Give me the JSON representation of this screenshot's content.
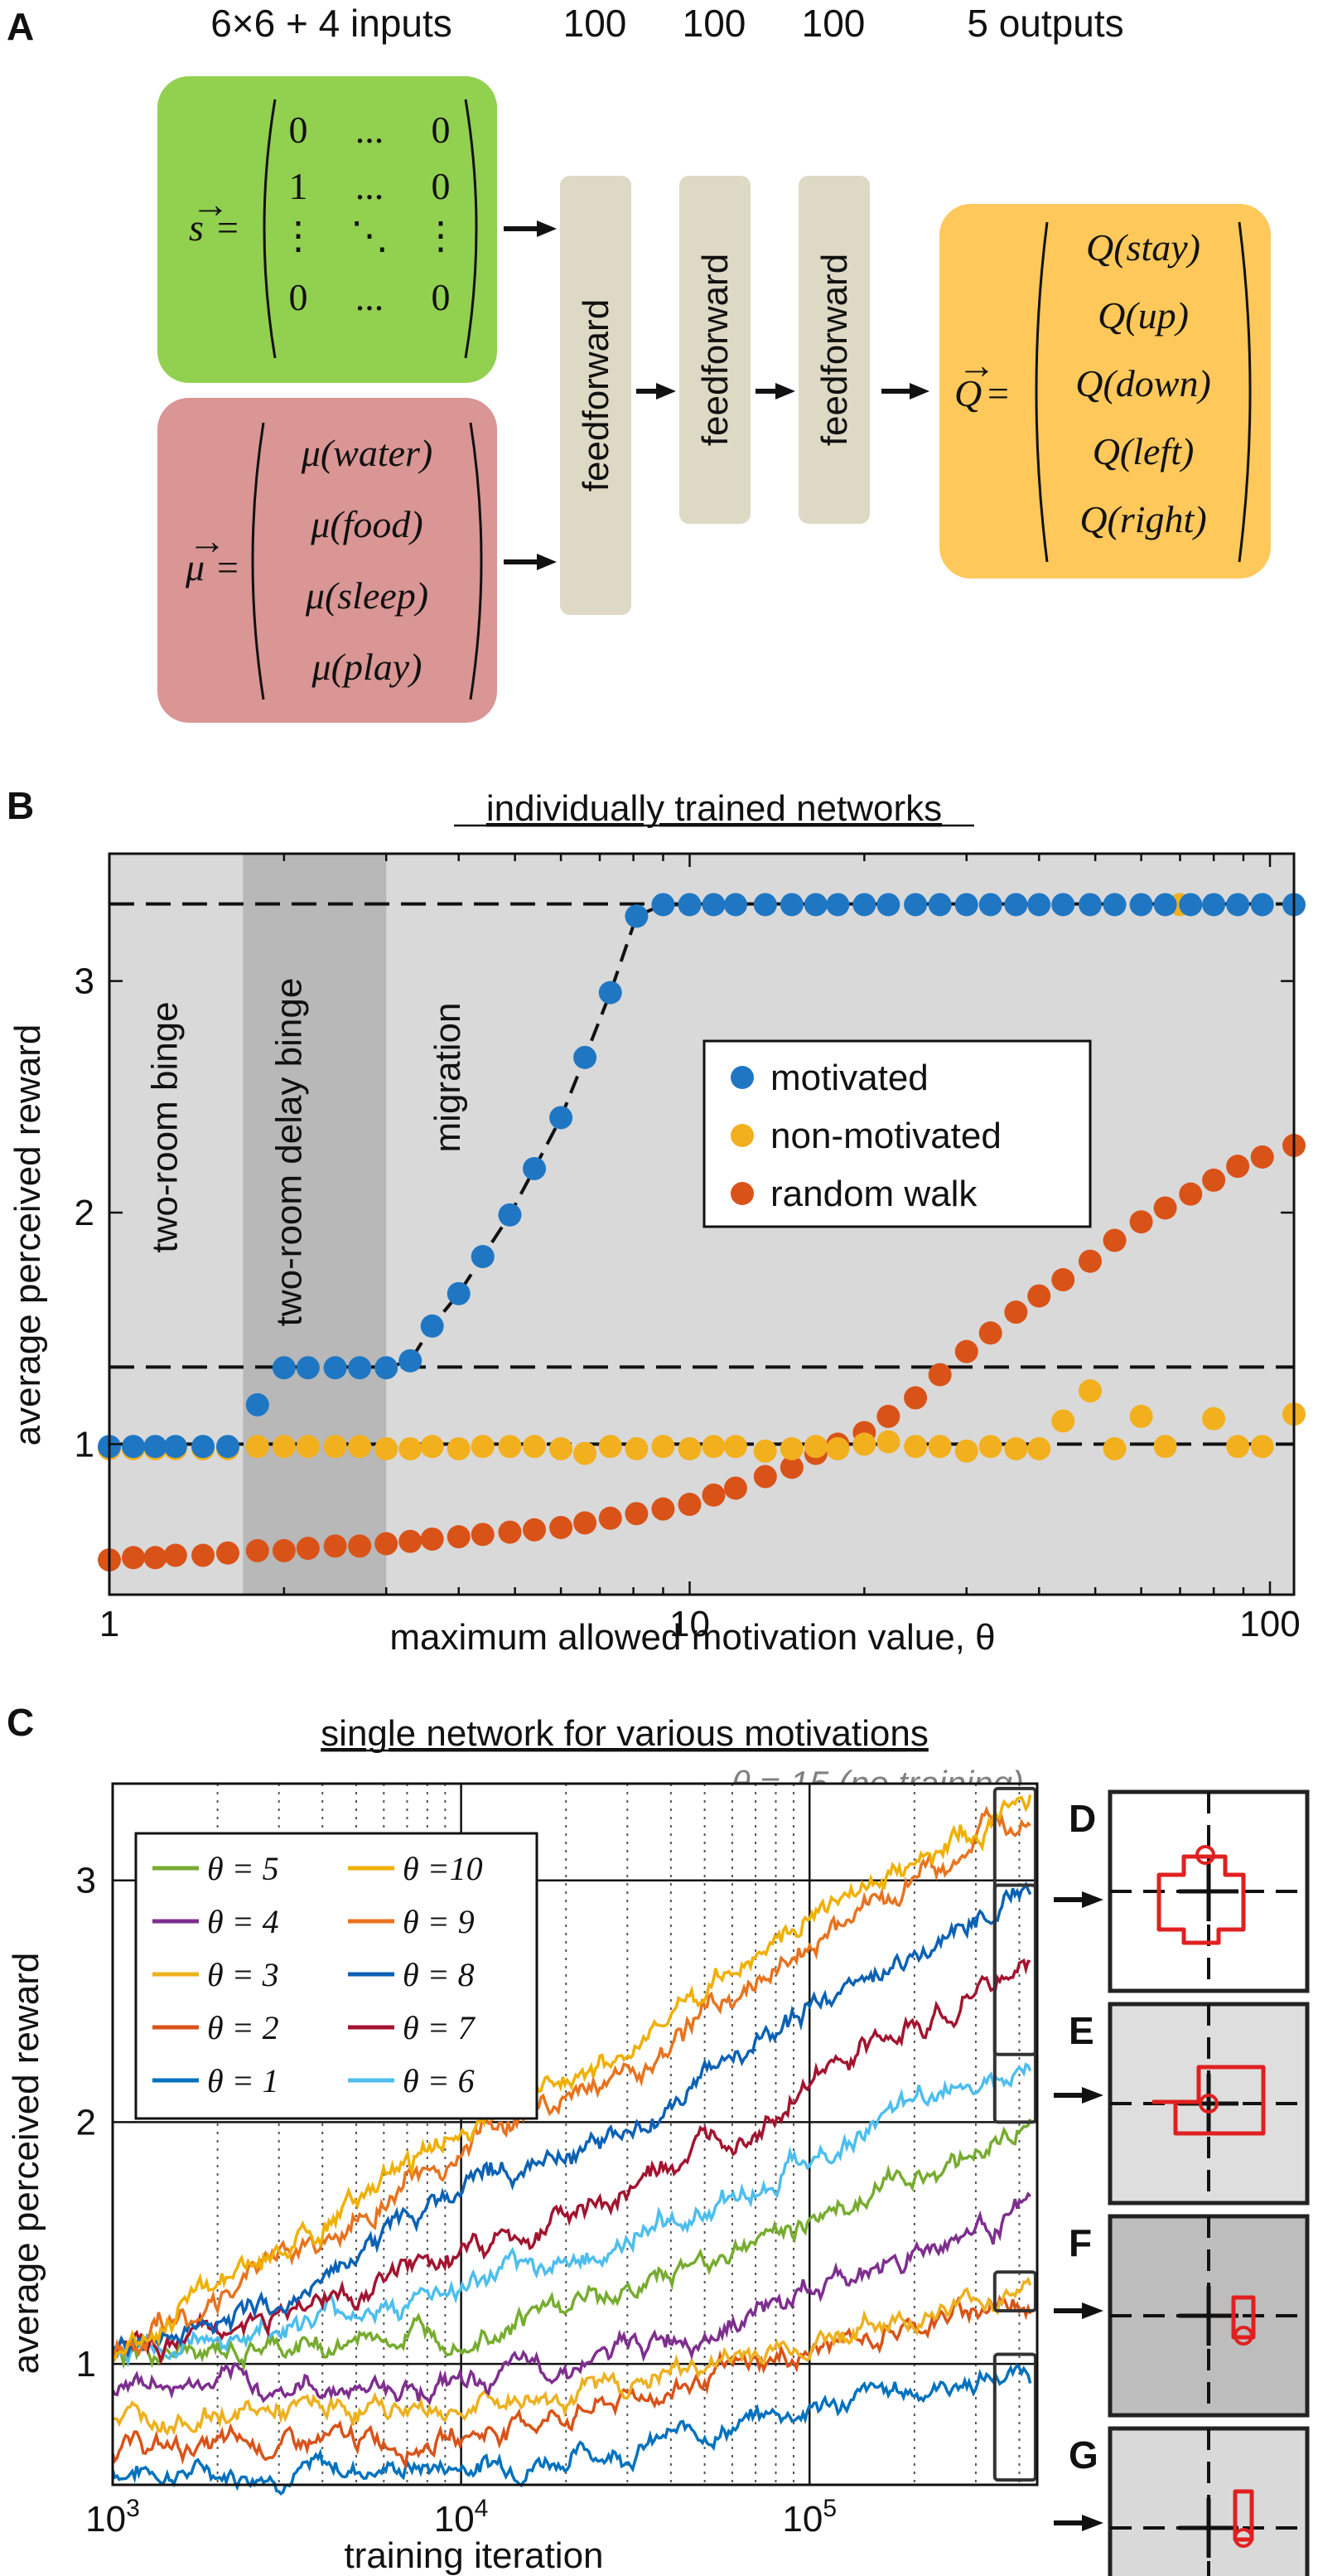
{
  "panelA": {
    "letter": "A",
    "layer_labels": [
      "6×6 + 4 inputs",
      "100",
      "100",
      "100",
      "5 outputs"
    ],
    "feedforward_label": "feedforward",
    "state_vector": {
      "symbol": "s",
      "rows": [
        [
          "0",
          "...",
          "0"
        ],
        [
          "1",
          "...",
          "0"
        ],
        [
          "⋮",
          "⋱",
          "⋮"
        ],
        [
          "0",
          "...",
          "0"
        ]
      ],
      "color": "#92d050"
    },
    "motivation_vector": {
      "symbol": "μ",
      "entries": [
        "μ(water)",
        "μ(food)",
        "μ(sleep)",
        "μ(play)"
      ],
      "color": "#d99694"
    },
    "output_vector": {
      "symbol": "Q",
      "entries": [
        "Q(stay)",
        "Q(up)",
        "Q(down)",
        "Q(left)",
        "Q(right)"
      ],
      "color": "#ffc85a"
    },
    "box_color": "#ddd9c4"
  },
  "panelB": {
    "letter": "B",
    "title": "individually trained networks",
    "regions": [
      "two-room binge",
      "two-room delay binge",
      "migration"
    ],
    "reference_lines": [
      1.0,
      1.333,
      3.333
    ],
    "chart_data": {
      "type": "scatter",
      "title": "individually trained networks",
      "xlabel": "maximum allowed motivation value, θ",
      "ylabel": "average perceived reward",
      "xscale": "log",
      "xlim": [
        1,
        110
      ],
      "ylim": [
        0.35,
        3.55
      ],
      "xticks": [
        {
          "v": 1,
          "label": "1"
        },
        {
          "v": 10,
          "label": "10"
        },
        {
          "v": 100,
          "label": "100"
        }
      ],
      "yticks": [
        {
          "v": 1,
          "label": "1"
        },
        {
          "v": 2,
          "label": "2"
        },
        {
          "v": 3,
          "label": "3"
        }
      ],
      "series": [
        {
          "name": "motivated",
          "color": "#1f77c4",
          "x": [
            1.0,
            1.1,
            1.2,
            1.3,
            1.45,
            1.6,
            1.8,
            2.0,
            2.2,
            2.45,
            2.7,
            3.0,
            3.3,
            3.6,
            4.0,
            4.4,
            4.9,
            5.4,
            6.0,
            6.6,
            7.3,
            8.1,
            9.0,
            10,
            11,
            12,
            13.5,
            15,
            16.5,
            18,
            20,
            22,
            24.5,
            27,
            30,
            33,
            36.5,
            40,
            44,
            49,
            54,
            60,
            66,
            73,
            80,
            88,
            97,
            110
          ],
          "y": [
            0.99,
            0.99,
            0.99,
            0.99,
            0.99,
            0.99,
            1.17,
            1.33,
            1.33,
            1.33,
            1.33,
            1.33,
            1.36,
            1.51,
            1.65,
            1.81,
            1.99,
            2.19,
            2.41,
            2.67,
            2.95,
            3.28,
            3.33,
            3.33,
            3.33,
            3.33,
            3.33,
            3.33,
            3.33,
            3.33,
            3.33,
            3.33,
            3.33,
            3.33,
            3.33,
            3.33,
            3.33,
            3.33,
            3.33,
            3.33,
            3.33,
            3.33,
            3.33,
            3.33,
            3.33,
            3.33,
            3.33,
            3.33
          ]
        },
        {
          "name": "non-motivated",
          "color": "#f2b01e",
          "x": [
            1.0,
            1.1,
            1.2,
            1.3,
            1.45,
            1.6,
            1.8,
            2.0,
            2.2,
            2.45,
            2.7,
            3.0,
            3.3,
            3.6,
            4.0,
            4.4,
            4.9,
            5.4,
            6.0,
            6.6,
            7.3,
            8.1,
            9.0,
            10,
            11,
            12,
            13.5,
            15,
            16.5,
            18,
            20,
            22,
            24.5,
            27,
            30,
            33,
            36.5,
            40,
            44,
            49,
            54,
            60,
            66,
            70,
            80,
            88,
            97,
            110
          ],
          "y": [
            0.98,
            0.98,
            0.98,
            0.98,
            0.98,
            0.98,
            0.99,
            0.99,
            0.99,
            0.99,
            0.99,
            0.98,
            0.98,
            0.99,
            0.98,
            0.99,
            0.99,
            0.99,
            0.98,
            0.96,
            0.99,
            0.98,
            0.99,
            0.98,
            0.99,
            0.99,
            0.97,
            0.98,
            0.99,
            0.98,
            1.0,
            1.01,
            0.99,
            0.99,
            0.97,
            0.99,
            0.98,
            0.98,
            1.1,
            1.23,
            0.98,
            1.12,
            0.99,
            3.33,
            1.11,
            0.99,
            0.99,
            1.13
          ]
        },
        {
          "name": "random walk",
          "color": "#d95319",
          "x": [
            1.0,
            1.1,
            1.2,
            1.3,
            1.45,
            1.6,
            1.8,
            2.0,
            2.2,
            2.45,
            2.7,
            3.0,
            3.3,
            3.6,
            4.0,
            4.4,
            4.9,
            5.4,
            6.0,
            6.6,
            7.3,
            8.1,
            9.0,
            10,
            11,
            12,
            13.5,
            15,
            16.5,
            18,
            20,
            22,
            24.5,
            27,
            30,
            33,
            36.5,
            40,
            44,
            49,
            54,
            60,
            66,
            73,
            80,
            88,
            97,
            110
          ],
          "y": [
            0.5,
            0.51,
            0.51,
            0.52,
            0.52,
            0.53,
            0.54,
            0.54,
            0.55,
            0.56,
            0.56,
            0.57,
            0.58,
            0.59,
            0.6,
            0.61,
            0.62,
            0.63,
            0.64,
            0.66,
            0.68,
            0.7,
            0.72,
            0.74,
            0.78,
            0.81,
            0.86,
            0.9,
            0.96,
            1.0,
            1.05,
            1.12,
            1.2,
            1.3,
            1.4,
            1.48,
            1.57,
            1.64,
            1.71,
            1.79,
            1.88,
            1.96,
            2.02,
            2.08,
            2.14,
            2.2,
            2.24,
            2.29
          ]
        }
      ]
    }
  },
  "panelC": {
    "letter": "C",
    "title": "single network for various motivations",
    "theta15_note": "θ = 15 (no training)",
    "chart_data": {
      "type": "line",
      "title": "single network for various motivations",
      "xlabel": "training iteration",
      "ylabel": "average perceived reward",
      "xscale": "log",
      "xlim": [
        1000,
        450000
      ],
      "ylim": [
        0.5,
        3.4
      ],
      "xticks": [
        {
          "v": 1000,
          "base": "10",
          "exp": "3"
        },
        {
          "v": 10000,
          "base": "10",
          "exp": "4"
        },
        {
          "v": 100000,
          "base": "10",
          "exp": "5"
        }
      ],
      "yticks": [
        {
          "v": 1,
          "label": "1"
        },
        {
          "v": 2,
          "label": "2"
        },
        {
          "v": 3,
          "label": "3"
        }
      ],
      "series": [
        {
          "name": "θ = 1",
          "color": "#0072bd",
          "points": [
            [
              1000,
              0.56
            ],
            [
              3000,
              0.56
            ],
            [
              10000,
              0.58
            ],
            [
              30000,
              0.65
            ],
            [
              100000,
              0.82
            ],
            [
              430000,
              0.97
            ]
          ]
        },
        {
          "name": "θ = 2",
          "color": "#d95319",
          "points": [
            [
              1000,
              0.65
            ],
            [
              3000,
              0.66
            ],
            [
              10000,
              0.7
            ],
            [
              30000,
              0.85
            ],
            [
              100000,
              1.05
            ],
            [
              430000,
              1.28
            ]
          ]
        },
        {
          "name": "θ = 3",
          "color": "#edb120",
          "points": [
            [
              1000,
              0.78
            ],
            [
              3000,
              0.8
            ],
            [
              10000,
              0.82
            ],
            [
              30000,
              0.92
            ],
            [
              100000,
              1.1
            ],
            [
              430000,
              1.32
            ]
          ]
        },
        {
          "name": "θ = 4",
          "color": "#7e2f8e",
          "points": [
            [
              1000,
              0.92
            ],
            [
              3000,
              0.9
            ],
            [
              10000,
              0.92
            ],
            [
              30000,
              1.05
            ],
            [
              100000,
              1.3
            ],
            [
              430000,
              1.65
            ]
          ]
        },
        {
          "name": "θ = 5",
          "color": "#77ac30",
          "points": [
            [
              1000,
              1.02
            ],
            [
              3000,
              1.05
            ],
            [
              10000,
              1.15
            ],
            [
              30000,
              1.3
            ],
            [
              100000,
              1.6
            ],
            [
              430000,
              1.98
            ]
          ]
        },
        {
          "name": "θ = 6",
          "color": "#4dbeee",
          "points": [
            [
              1000,
              1.05
            ],
            [
              3000,
              1.15
            ],
            [
              10000,
              1.3
            ],
            [
              30000,
              1.5
            ],
            [
              100000,
              1.85
            ],
            [
              430000,
              2.3
            ]
          ]
        },
        {
          "name": "θ = 7",
          "color": "#a2142f",
          "points": [
            [
              1000,
              1.05
            ],
            [
              3000,
              1.2
            ],
            [
              10000,
              1.45
            ],
            [
              30000,
              1.7
            ],
            [
              100000,
              2.15
            ],
            [
              430000,
              2.65
            ]
          ]
        },
        {
          "name": "θ = 8",
          "color": "#0b62b5",
          "points": [
            [
              1000,
              1.05
            ],
            [
              3000,
              1.25
            ],
            [
              10000,
              1.75
            ],
            [
              30000,
              1.95
            ],
            [
              100000,
              2.45
            ],
            [
              430000,
              2.98
            ]
          ]
        },
        {
          "name": "θ = 9",
          "color": "#e8731f",
          "points": [
            [
              1000,
              1.05
            ],
            [
              3000,
              1.4
            ],
            [
              10000,
              1.9
            ],
            [
              30000,
              2.2
            ],
            [
              100000,
              2.75
            ],
            [
              430000,
              3.28
            ]
          ]
        },
        {
          "name": "θ =10",
          "color": "#f0b000",
          "points": [
            [
              1000,
              1.05
            ],
            [
              3000,
              1.45
            ],
            [
              10000,
              1.95
            ],
            [
              30000,
              2.3
            ],
            [
              100000,
              2.85
            ],
            [
              430000,
              3.32
            ]
          ]
        }
      ]
    },
    "legend_left": [
      "θ = 5",
      "θ = 4",
      "θ = 3",
      "θ = 2",
      "θ = 1"
    ],
    "legend_right": [
      "θ =10",
      "θ = 9",
      "θ = 8",
      "θ = 7",
      "θ = 6"
    ]
  },
  "insets": [
    {
      "letter": "D",
      "shade": "#ffffff",
      "path": "loop-D"
    },
    {
      "letter": "E",
      "shade": "#dedede",
      "path": "loop-E"
    },
    {
      "letter": "F",
      "shade": "#bdbdbd",
      "path": "loop-F"
    },
    {
      "letter": "G",
      "shade": "#d9d9d9",
      "path": "loop-G"
    }
  ],
  "colors": {
    "plot_bg": "#d9d9d9",
    "band_bg": "#b8b8b8",
    "trajectory": "#e02020"
  }
}
